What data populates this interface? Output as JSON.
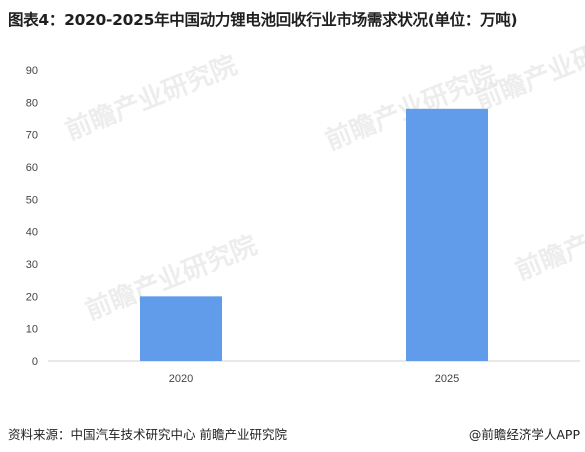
{
  "title": "图表4：2020-2025年中国动力锂电池回收行业市场需求状况(单位：万吨)",
  "watermark": "前瞻产业研究院",
  "footer": {
    "source": "资料来源：中国汽车技术研究中心 前瞻产业研究院",
    "brand": "@前瞻经济学人APP"
  },
  "chart_data": {
    "type": "bar",
    "categories": [
      "2020",
      "2025"
    ],
    "values": [
      20,
      78
    ],
    "ylim": [
      0,
      90
    ],
    "yticks": [
      0,
      10,
      20,
      30,
      40,
      50,
      60,
      70,
      80,
      90
    ],
    "bar_color": "#609cea",
    "grid": false,
    "legend": "none"
  }
}
